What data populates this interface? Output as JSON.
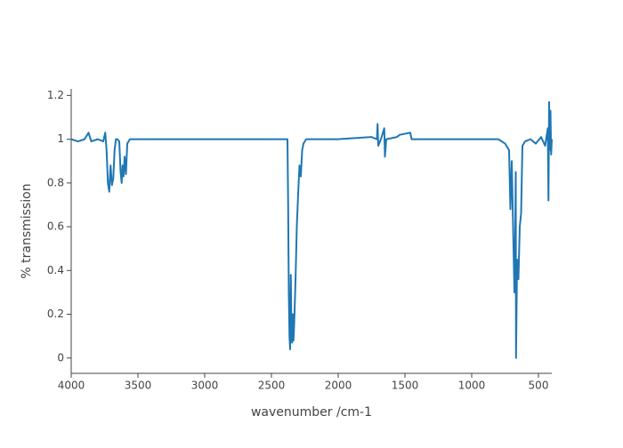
{
  "chart_data": {
    "type": "line",
    "x_label": "wavenumber /cm-1",
    "y_label": "% transmission",
    "xlim": [
      4000,
      400
    ],
    "ylim": [
      -0.07,
      1.23
    ],
    "xticks": [
      4000,
      3500,
      3000,
      2500,
      2000,
      1500,
      1000,
      500
    ],
    "yticks": [
      0,
      0.2,
      0.4,
      0.6,
      0.8,
      1,
      1.2
    ],
    "grid": false,
    "series": [
      {
        "color": "#1f77b4",
        "x": [
          4000,
          3950,
          3900,
          3870,
          3850,
          3800,
          3760,
          3745,
          3735,
          3725,
          3715,
          3705,
          3695,
          3685,
          3675,
          3665,
          3655,
          3640,
          3630,
          3622,
          3615,
          3608,
          3600,
          3590,
          3580,
          3560,
          3500,
          3400,
          3000,
          2600,
          2400,
          2380,
          2375,
          2370,
          2365,
          2360,
          2355,
          2350,
          2345,
          2340,
          2335,
          2330,
          2320,
          2310,
          2300,
          2290,
          2280,
          2270,
          2260,
          2240,
          2000,
          1750,
          1710,
          1705,
          1700,
          1680,
          1655,
          1650,
          1640,
          1560,
          1540,
          1460,
          1450,
          1300,
          1000,
          800,
          750,
          720,
          710,
          700,
          690,
          680,
          675,
          670,
          668,
          660,
          650,
          640,
          630,
          620,
          600,
          560,
          520,
          480,
          450,
          430,
          425,
          420,
          415,
          410,
          405,
          400
        ],
        "values": [
          1.0,
          0.99,
          1.0,
          1.03,
          0.99,
          1.0,
          0.99,
          1.03,
          0.95,
          0.8,
          0.76,
          0.88,
          0.79,
          0.82,
          0.95,
          1.0,
          1.0,
          0.99,
          0.85,
          0.8,
          0.88,
          0.83,
          0.92,
          0.84,
          0.98,
          1.0,
          1.0,
          1.0,
          1.0,
          1.0,
          1.0,
          1.0,
          0.7,
          0.3,
          0.1,
          0.04,
          0.38,
          0.1,
          0.07,
          0.2,
          0.08,
          0.15,
          0.35,
          0.6,
          0.75,
          0.88,
          0.83,
          0.95,
          0.98,
          1.0,
          1.0,
          1.01,
          1.0,
          1.07,
          0.97,
          1.0,
          1.05,
          0.92,
          1.0,
          1.01,
          1.02,
          1.03,
          1.0,
          1.0,
          1.0,
          1.0,
          0.98,
          0.95,
          0.68,
          0.9,
          0.6,
          0.3,
          0.5,
          0.85,
          0.0,
          0.45,
          0.36,
          0.6,
          0.66,
          0.97,
          0.99,
          1.0,
          0.98,
          1.01,
          0.97,
          1.05,
          0.72,
          1.17,
          0.95,
          1.13,
          0.93,
          1.0
        ]
      }
    ]
  }
}
